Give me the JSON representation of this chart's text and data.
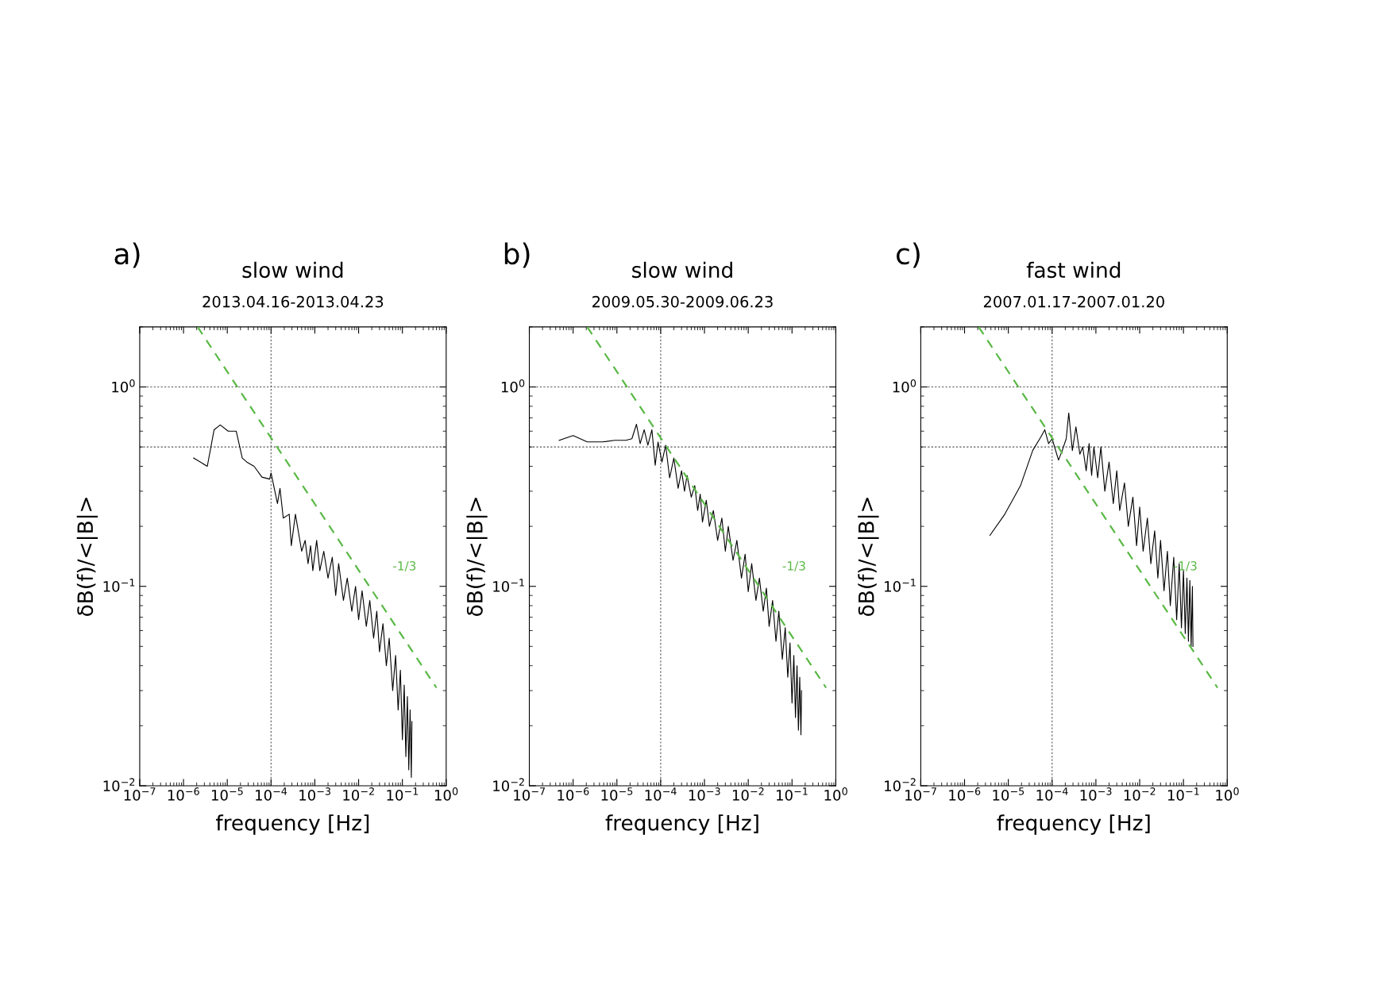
{
  "chart_data": [
    {
      "type": "line",
      "title": "slow wind",
      "subtitle": "2013.04.16-2013.04.23",
      "xlabel": "frequency [Hz]",
      "ylabel": "δB(f)/<|B|>",
      "annotations": [
        "a)",
        "-1/3"
      ],
      "log": "xy",
      "grid": false,
      "xlim": [
        1e-07,
        1
      ],
      "ylim": [
        0.01,
        2
      ],
      "xticks": [
        {
          "value": 1e-07,
          "label": "10$^{−7}$"
        },
        {
          "value": 1e-06,
          "label": "10$^{−6}$"
        },
        {
          "value": 1e-05,
          "label": "10$^{−5}$"
        },
        {
          "value": 0.0001,
          "label": "10$^{−4}$"
        },
        {
          "value": 0.001,
          "label": "10$^{−3}$"
        },
        {
          "value": 0.01,
          "label": "10$^{−2}$"
        },
        {
          "value": 0.1,
          "label": "10$^{−1}$"
        },
        {
          "value": 1,
          "label": "10$^{0}$"
        }
      ],
      "yticks": [
        {
          "value": 0.01,
          "label": "10$^{−2}$"
        },
        {
          "value": 0.1,
          "label": "10$^{−1}$"
        },
        {
          "value": 1,
          "label": "10$^{0}$"
        }
      ],
      "ref_lines": [
        {
          "axis": "y",
          "value": 1,
          "label": null,
          "color": "#555555",
          "line_style": "dotted"
        },
        {
          "axis": "y",
          "value": 0.5,
          "label": null,
          "color": "#555555",
          "line_style": "dotted"
        },
        {
          "axis": "x",
          "value": 0.0001,
          "label": null,
          "color": "#555555",
          "line_style": "dotted"
        }
      ],
      "series": [
        {
          "color": "#000000",
          "line_style": "solid",
          "x": [
            1.7e-06,
            3.5e-06,
            5e-06,
            6.9e-06,
            1.05e-05,
            1.6e-05,
            2.2e-05,
            2.8e-05,
            4.1e-05,
            6.2e-05,
            9.3e-05,
            0.0001,
            0.00014,
            0.00016,
            0.00019,
            0.00026,
            0.00029,
            0.00036,
            0.0005,
            0.0006,
            0.0007,
            0.0008,
            0.0009,
            0.0011,
            0.0013,
            0.0016,
            0.002,
            0.0025,
            0.003,
            0.0035,
            0.0045,
            0.0055,
            0.007,
            0.0085,
            0.01,
            0.012,
            0.015,
            0.018,
            0.022,
            0.026,
            0.03,
            0.036,
            0.043,
            0.05,
            0.06,
            0.07,
            0.08,
            0.09,
            0.1,
            0.11,
            0.12,
            0.13,
            0.14,
            0.15,
            0.16,
            0.165
          ],
          "values": [
            0.44,
            0.4,
            0.61,
            0.645,
            0.6,
            0.6,
            0.44,
            0.42,
            0.4,
            0.353,
            0.345,
            0.37,
            0.26,
            0.31,
            0.22,
            0.23,
            0.16,
            0.23,
            0.15,
            0.17,
            0.13,
            0.16,
            0.12,
            0.17,
            0.12,
            0.15,
            0.11,
            0.14,
            0.09,
            0.13,
            0.085,
            0.11,
            0.075,
            0.1,
            0.068,
            0.095,
            0.063,
            0.085,
            0.055,
            0.075,
            0.047,
            0.065,
            0.04,
            0.055,
            0.03,
            0.045,
            0.024,
            0.038,
            0.017,
            0.032,
            0.014,
            0.028,
            0.012,
            0.024,
            0.011,
            0.021
          ]
        },
        {
          "color": "#5ab946",
          "line_style": "dashed",
          "x": [
            2.1e-06,
            0.6
          ],
          "values": [
            2.0,
            0.031
          ]
        }
      ]
    },
    {
      "type": "line",
      "title": "slow wind",
      "subtitle": "2009.05.30-2009.06.23",
      "xlabel": "frequency [Hz]",
      "ylabel": "δB(f)/<|B|>",
      "annotations": [
        "b)",
        "-1/3"
      ],
      "log": "xy",
      "grid": false,
      "xlim": [
        1e-07,
        1
      ],
      "ylim": [
        0.01,
        2
      ],
      "xticks": [
        {
          "value": 1e-07,
          "label": "10$^{−7}$"
        },
        {
          "value": 1e-06,
          "label": "10$^{−6}$"
        },
        {
          "value": 1e-05,
          "label": "10$^{−5}$"
        },
        {
          "value": 0.0001,
          "label": "10$^{−4}$"
        },
        {
          "value": 0.001,
          "label": "10$^{−3}$"
        },
        {
          "value": 0.01,
          "label": "10$^{−2}$"
        },
        {
          "value": 0.1,
          "label": "10$^{−1}$"
        },
        {
          "value": 1,
          "label": "10$^{0}$"
        }
      ],
      "yticks": [
        {
          "value": 0.01,
          "label": "10$^{−2}$"
        },
        {
          "value": 0.1,
          "label": "10$^{−1}$"
        },
        {
          "value": 1,
          "label": "10$^{0}$"
        }
      ],
      "ref_lines": [
        {
          "axis": "y",
          "value": 1,
          "label": null,
          "color": "#555555",
          "line_style": "dotted"
        },
        {
          "axis": "y",
          "value": 0.5,
          "label": null,
          "color": "#555555",
          "line_style": "dotted"
        },
        {
          "axis": "x",
          "value": 0.0001,
          "label": null,
          "color": "#555555",
          "line_style": "dotted"
        }
      ],
      "series": [
        {
          "color": "#000000",
          "line_style": "solid",
          "x": [
            4.8e-07,
            1e-06,
            2.1e-06,
            4.7e-06,
            8.9e-06,
            1.6e-05,
            2.2e-05,
            2.8e-05,
            3.4e-05,
            4.2e-05,
            5.1e-05,
            6.3e-05,
            7.5e-05,
            8.7e-05,
            0.000107,
            0.00013,
            0.00016,
            0.0002,
            0.00025,
            0.0003,
            0.00035,
            0.0004,
            0.0005,
            0.0006,
            0.0007,
            0.0008,
            0.0009,
            0.0011,
            0.0013,
            0.0016,
            0.002,
            0.0025,
            0.003,
            0.0035,
            0.0045,
            0.0055,
            0.007,
            0.0085,
            0.01,
            0.012,
            0.015,
            0.018,
            0.022,
            0.026,
            0.03,
            0.036,
            0.043,
            0.05,
            0.06,
            0.07,
            0.08,
            0.09,
            0.1,
            0.11,
            0.12,
            0.13,
            0.14,
            0.15,
            0.16,
            0.165
          ],
          "values": [
            0.54,
            0.57,
            0.53,
            0.53,
            0.54,
            0.54,
            0.55,
            0.65,
            0.52,
            0.61,
            0.51,
            0.61,
            0.405,
            0.53,
            0.42,
            0.51,
            0.35,
            0.44,
            0.31,
            0.38,
            0.3,
            0.36,
            0.28,
            0.32,
            0.24,
            0.29,
            0.21,
            0.27,
            0.2,
            0.24,
            0.17,
            0.22,
            0.15,
            0.2,
            0.135,
            0.17,
            0.11,
            0.145,
            0.094,
            0.13,
            0.085,
            0.11,
            0.075,
            0.098,
            0.063,
            0.085,
            0.053,
            0.075,
            0.043,
            0.062,
            0.035,
            0.052,
            0.026,
            0.045,
            0.022,
            0.04,
            0.019,
            0.035,
            0.018,
            0.03
          ]
        },
        {
          "color": "#5ab946",
          "line_style": "dashed",
          "x": [
            2.1e-06,
            0.6
          ],
          "values": [
            2.0,
            0.031
          ]
        }
      ]
    },
    {
      "type": "line",
      "title": "fast wind",
      "subtitle": "2007.01.17-2007.01.20",
      "xlabel": "frequency [Hz]",
      "ylabel": "δB(f)/<|B|>",
      "annotations": [
        "c)",
        "-1/3"
      ],
      "log": "xy",
      "grid": false,
      "xlim": [
        1e-07,
        1
      ],
      "ylim": [
        0.01,
        2
      ],
      "xticks": [
        {
          "value": 1e-07,
          "label": "10$^{−7}$"
        },
        {
          "value": 1e-06,
          "label": "10$^{−6}$"
        },
        {
          "value": 1e-05,
          "label": "10$^{−5}$"
        },
        {
          "value": 0.0001,
          "label": "10$^{−4}$"
        },
        {
          "value": 0.001,
          "label": "10$^{−3}$"
        },
        {
          "value": 0.01,
          "label": "10$^{−2}$"
        },
        {
          "value": 0.1,
          "label": "10$^{−1}$"
        },
        {
          "value": 1,
          "label": "10$^{0}$"
        }
      ],
      "yticks": [
        {
          "value": 0.01,
          "label": "10$^{−2}$"
        },
        {
          "value": 0.1,
          "label": "10$^{−1}$"
        },
        {
          "value": 1,
          "label": "10$^{0}$"
        }
      ],
      "ref_lines": [
        {
          "axis": "y",
          "value": 1,
          "label": null,
          "color": "#555555",
          "line_style": "dotted"
        },
        {
          "axis": "y",
          "value": 0.5,
          "label": null,
          "color": "#555555",
          "line_style": "dotted"
        },
        {
          "axis": "x",
          "value": 0.0001,
          "label": null,
          "color": "#555555",
          "line_style": "dotted"
        }
      ],
      "series": [
        {
          "color": "#000000",
          "line_style": "solid",
          "x": [
            3.8e-06,
            8.3e-06,
            1.9e-05,
            3.6e-05,
            5.5e-05,
            6.8e-05,
            8.3e-05,
            0.0001,
            0.00014,
            0.00017,
            0.00021,
            0.00024,
            0.00029,
            0.00035,
            0.00043,
            0.0005,
            0.0006,
            0.0007,
            0.0008,
            0.0009,
            0.0011,
            0.0013,
            0.0016,
            0.002,
            0.0025,
            0.003,
            0.0035,
            0.0045,
            0.0055,
            0.007,
            0.0085,
            0.01,
            0.012,
            0.015,
            0.018,
            0.022,
            0.026,
            0.03,
            0.036,
            0.043,
            0.05,
            0.06,
            0.07,
            0.08,
            0.09,
            0.1,
            0.11,
            0.12,
            0.13,
            0.14,
            0.15,
            0.16,
            0.165
          ],
          "values": [
            0.18,
            0.23,
            0.32,
            0.48,
            0.56,
            0.61,
            0.52,
            0.55,
            0.43,
            0.48,
            0.55,
            0.74,
            0.48,
            0.63,
            0.46,
            0.5,
            0.38,
            0.52,
            0.36,
            0.5,
            0.35,
            0.5,
            0.3,
            0.42,
            0.26,
            0.38,
            0.24,
            0.33,
            0.2,
            0.28,
            0.16,
            0.25,
            0.15,
            0.22,
            0.13,
            0.19,
            0.11,
            0.17,
            0.095,
            0.15,
            0.08,
            0.14,
            0.068,
            0.13,
            0.062,
            0.12,
            0.058,
            0.11,
            0.053,
            0.107,
            0.05,
            0.1,
            0.05
          ]
        },
        {
          "color": "#5ab946",
          "line_style": "dashed",
          "x": [
            2.1e-06,
            0.6
          ],
          "values": [
            2.0,
            0.031
          ]
        }
      ]
    }
  ]
}
